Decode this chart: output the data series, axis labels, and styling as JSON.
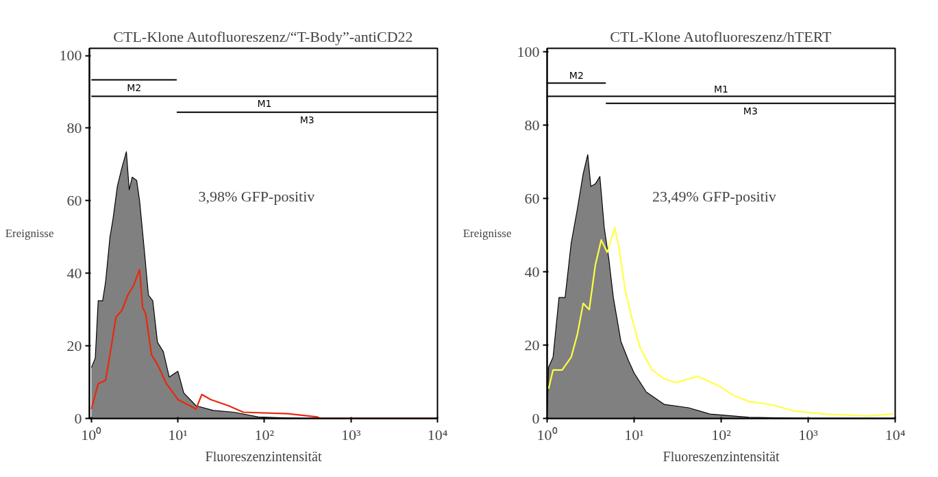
{
  "chart_data": [
    {
      "type": "area",
      "title": "CTL-Klone Autofluoreszenz/“T-Body”-antiCD22",
      "xlabel": "Fluoreszenzintensität",
      "ylabel": "Ereignisse",
      "log": "x",
      "grid": false,
      "xlim": [
        0.95,
        10000
      ],
      "ylim": [
        0,
        102
      ],
      "xticks": [
        {
          "value": 1,
          "label": "10⁰"
        },
        {
          "value": 10,
          "label": "10¹"
        },
        {
          "value": 100,
          "label": "10²"
        },
        {
          "value": 1000,
          "label": "10³"
        },
        {
          "value": 10000,
          "label": "10⁴"
        }
      ],
      "yticks": [
        0,
        20,
        40,
        60,
        80,
        100
      ],
      "series": [
        {
          "color": "#808080",
          "x": [
            1,
            1.11,
            1.2,
            1.35,
            1.46,
            1.64,
            1.78,
            2.0,
            2.25,
            2.54,
            2.74,
            2.97,
            3.34,
            3.61,
            4.07,
            4.57,
            5.13,
            5.81,
            6.79,
            7.94,
            10,
            11.7,
            16.2,
            25.7,
            44.7,
            85,
            275,
            10000
          ],
          "values": [
            14,
            16.6,
            32.4,
            32.4,
            37.6,
            49.9,
            55,
            64,
            69,
            73.5,
            63,
            66.5,
            65.6,
            60,
            47,
            34,
            32.4,
            21,
            18.4,
            11.4,
            13,
            7,
            3.5,
            2.2,
            1.7,
            0.4,
            0,
            0
          ]
        },
        {
          "type": "line",
          "color": "#e8280c",
          "x": [
            1,
            1.2,
            1.46,
            1.64,
            1.93,
            2.25,
            2.64,
            3.09,
            3.61,
            3.91,
            4.24,
            4.96,
            5.81,
            7.36,
            10,
            16.2,
            18.9,
            23.9,
            38.5,
            57,
            186,
            410,
            440,
            10000
          ],
          "values": [
            2.6,
            9.6,
            10.5,
            17.5,
            28,
            29.7,
            34,
            36.7,
            41,
            30.6,
            28.9,
            17.5,
            14.9,
            9.6,
            5.2,
            2.6,
            6.6,
            5.2,
            3.5,
            1.7,
            1.3,
            0.4,
            0,
            0
          ]
        },
        {
          "type": "line",
          "name": "M2",
          "color": "#000000",
          "x": [
            1,
            9.7
          ],
          "values": [
            93.3,
            93.3
          ]
        },
        {
          "type": "line",
          "name": "M1",
          "color": "#000000",
          "x": [
            1,
            10000
          ],
          "values": [
            88.8,
            88.8
          ]
        },
        {
          "type": "line",
          "name": "M3",
          "color": "#000000",
          "x": [
            9.7,
            10000
          ],
          "values": [
            84.4,
            84.4
          ]
        }
      ],
      "annotations": [
        "3,98% GFP-positiv"
      ]
    },
    {
      "type": "area",
      "title": "CTL-Klone Autofluoreszenz/hTERT",
      "xlabel": "Fluoreszenzintensität",
      "ylabel": "Ereignisse",
      "log": "x",
      "grid": false,
      "xlim": [
        1,
        10000
      ],
      "ylim": [
        0,
        101
      ],
      "xticks": [
        {
          "value": 1,
          "label": "10⁰"
        },
        {
          "value": 10,
          "label": "10¹"
        },
        {
          "value": 100,
          "label": "10²"
        },
        {
          "value": 1000,
          "label": "10³"
        },
        {
          "value": 10000,
          "label": "10⁴"
        }
      ],
      "yticks": [
        0,
        20,
        40,
        60,
        80,
        100
      ],
      "series": [
        {
          "color": "#808080",
          "x": [
            1,
            1.04,
            1.17,
            1.37,
            1.61,
            1.89,
            2.22,
            2.6,
            2.93,
            3.18,
            3.58,
            4.04,
            4.54,
            5.12,
            5.77,
            7.05,
            8.6,
            10,
            13.8,
            22.3,
            42.4,
            74,
            209,
            1020,
            10000
          ],
          "values": [
            0,
            14,
            16.7,
            33,
            33,
            47.8,
            57,
            66.8,
            72,
            63.3,
            64,
            66,
            52,
            43.5,
            33,
            21,
            15.8,
            12.4,
            7.2,
            3.8,
            2.9,
            1.2,
            0.3,
            0,
            0
          ]
        },
        {
          "type": "line",
          "color": "#ffff44",
          "x": [
            1.04,
            1.17,
            1.49,
            1.89,
            2.22,
            2.6,
            3.05,
            3.58,
            4.19,
            4.91,
            5.99,
            6.76,
            7.93,
            9.29,
            11.7,
            16.2,
            22.3,
            30.7,
            53.5,
            93.5,
            139,
            209,
            390,
            687,
            1520,
            5000,
            9500
          ],
          "values": [
            8.1,
            13.2,
            13.2,
            16.7,
            22.8,
            31.4,
            29.7,
            41.8,
            48.7,
            45.3,
            52.1,
            46,
            34.8,
            27.9,
            19.3,
            13.2,
            10.7,
            9.8,
            11.5,
            8.9,
            6.3,
            4.6,
            3.7,
            2,
            1.2,
            0.7,
            1.2
          ]
        },
        {
          "type": "line",
          "name": "M2",
          "color": "#000000",
          "x": [
            1,
            4.73
          ],
          "values": [
            91.5,
            91.5
          ]
        },
        {
          "type": "line",
          "name": "M1",
          "color": "#000000",
          "x": [
            1,
            10000
          ],
          "values": [
            87.9,
            87.9
          ]
        },
        {
          "type": "line",
          "name": "M3",
          "color": "#000000",
          "x": [
            4.73,
            10000
          ],
          "values": [
            86,
            86
          ]
        }
      ],
      "annotations": [
        "23,49% GFP-positiv"
      ]
    }
  ]
}
